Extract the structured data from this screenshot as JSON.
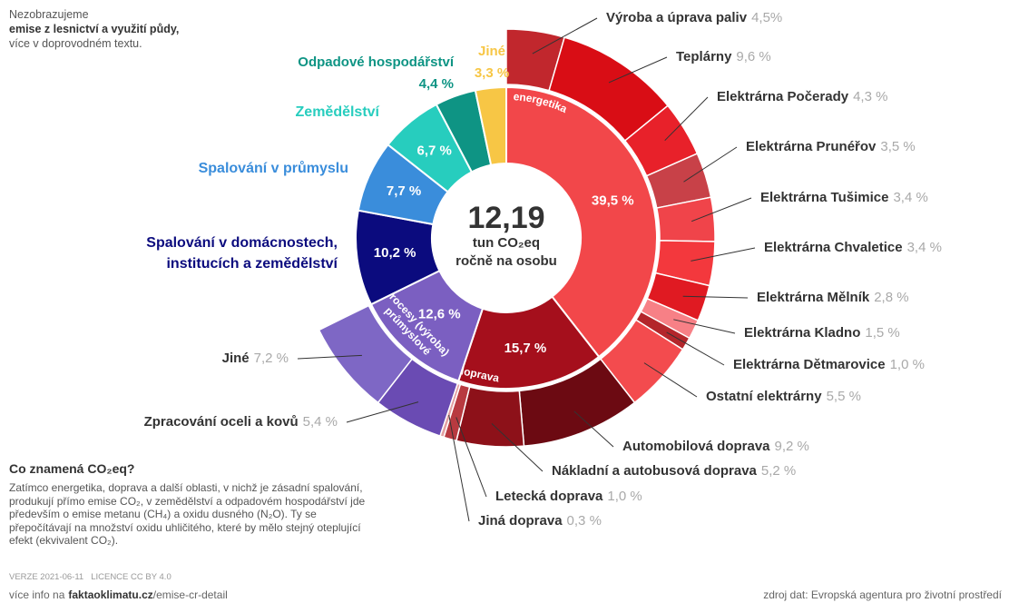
{
  "note": {
    "lines": [
      "Nezobrazujeme",
      "emise z lesnictví a využití půdy,",
      "více v doprovodném textu."
    ]
  },
  "chart_data": {
    "type": "sunburst",
    "center": {
      "value": "12,19",
      "unit": "tun CO₂eq",
      "caption": "ročně na osobu"
    },
    "segments": [
      {
        "name": "energetika",
        "color": "#f2474a",
        "value": 39.5,
        "value_label": "39,5 %",
        "children": [
          {
            "name": "Výroba a úprava paliv",
            "color": "#c1272d",
            "value": 4.5,
            "value_label": "4,5%"
          },
          {
            "name": "Teplárny",
            "color": "#d90d15",
            "value": 9.6,
            "value_label": "9,6 %"
          },
          {
            "name": "Elektrárna Počerady",
            "color": "#e8212a",
            "value": 4.3,
            "value_label": "4,3 %"
          },
          {
            "name": "Elektrárna Prunéřov",
            "color": "#c84148",
            "value": 3.5,
            "value_label": "3,5 %"
          },
          {
            "name": "Elektrárna Tušimice",
            "color": "#f0444a",
            "value": 3.4,
            "value_label": "3,4 %"
          },
          {
            "name": "Elektrárna Chvaletice",
            "color": "#f3383d",
            "value": 3.4,
            "value_label": "3,4 %"
          },
          {
            "name": "Elektrárna Mělník",
            "color": "#e01a22",
            "value": 2.8,
            "value_label": "2,8 %"
          },
          {
            "name": "Elektrárna Kladno",
            "color": "#f78086",
            "value": 1.5,
            "value_label": "1,5 %"
          },
          {
            "name": "Elektrárna Dětmarovice",
            "color": "#b3262b",
            "value": 1.0,
            "value_label": "1,0 %"
          },
          {
            "name": "Ostatní elektrárny",
            "color": "#f34b4e",
            "value": 5.5,
            "value_label": "5,5 %"
          }
        ]
      },
      {
        "name": "doprava",
        "color": "#a50f1c",
        "value": 15.7,
        "value_label": "15,7 %",
        "children": [
          {
            "name": "Automobilová doprava",
            "color": "#6c0a12",
            "value": 9.2,
            "value_label": "9,2 %"
          },
          {
            "name": "Nákladní a autobusová doprava",
            "color": "#8d1119",
            "value": 5.2,
            "value_label": "5,2 %"
          },
          {
            "name": "Letecká doprava",
            "color": "#b83a40",
            "value": 1.0,
            "value_label": "1,0 %"
          },
          {
            "name": "Jiná doprava",
            "color": "#e3a0a2",
            "value": 0.3,
            "value_label": "0,3 %"
          }
        ]
      },
      {
        "name_lines": [
          "průmyslové",
          "procesy (výroba)"
        ],
        "color": "#7b5fc1",
        "value": 12.6,
        "value_label": "12,6 %",
        "children": [
          {
            "name": "Zpracování oceli a kovů",
            "color": "#6a4bb3",
            "value": 5.4,
            "value_label": "5,4 %"
          },
          {
            "name": "Jiné",
            "color": "#7e67c5",
            "value": 7.2,
            "value_label": "7,2 %"
          }
        ]
      },
      {
        "name_lines": [
          "Spalování v domácnostech,",
          "institucích a zemědělství"
        ],
        "color": "#0b0b7e",
        "value": 10.2,
        "value_label": "10,2 %"
      },
      {
        "name": "Spalování v průmyslu",
        "color": "#3a8ddb",
        "value": 7.7,
        "value_label": "7,7 %"
      },
      {
        "name": "Zemědělství",
        "color": "#27cdbe",
        "value": 6.7,
        "value_label": "6,7 %"
      },
      {
        "name": "Odpadové hospodářství",
        "color": "#0e9484",
        "value": 4.4,
        "value_label": "4,4 %"
      },
      {
        "name": "Jiné",
        "color": "#f7c645",
        "value": 3.3,
        "value_label": "3,3 %"
      }
    ]
  },
  "explainer": {
    "title": "Co znamená CO₂eq?",
    "text": "Zatímco energetika, doprava a další oblasti, v nichž je zásadní spalování, produkují přímo emise CO₂, v zemědělství a odpadovém hospodářství jde především o emise metanu (CH₄) a oxidu dusného (N₂O). Ty se přepočítávají na množství oxidu uhličitého, které by mělo stejný oteplující efekt (ekvivalent CO₂)."
  },
  "footer": {
    "version": "VERZE 2021-06-11",
    "license": "LICENCE CC BY 4.0",
    "more_prefix": "více info na",
    "more_site": "faktaoklimatu.cz",
    "more_path": "/emise-cr-detail",
    "source": "zdroj dat: Evropská agentura pro životní prostředí"
  }
}
